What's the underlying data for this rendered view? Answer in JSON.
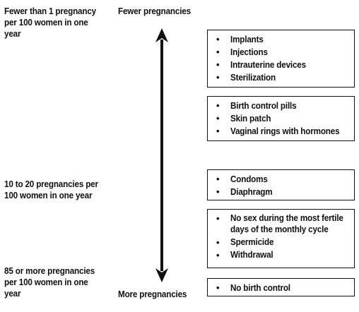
{
  "labels": {
    "top": "Fewer than 1 pregnancy\nper 100 women in one\nyear",
    "middle": "10 to 20 pregnancies per\n100 women in one year",
    "bottom": "85 or more pregnancies\nper 100 women in one\nyear"
  },
  "arrow": {
    "top_label": "Fewer pregnancies",
    "bottom_label": "More pregnancies"
  },
  "groups": [
    {
      "items": [
        "Implants",
        "Injections",
        "Intrauterine devices",
        "Sterilization"
      ]
    },
    {
      "items": [
        "Birth control pills",
        "Skin patch",
        "Vaginal rings with hormones"
      ]
    },
    {
      "items": [
        "Condoms",
        "Diaphragm"
      ]
    },
    {
      "items": [
        "No sex during the most fertile days of the monthly cycle",
        "Spermicide",
        "Withdrawal"
      ]
    },
    {
      "items": [
        "No birth control"
      ]
    }
  ],
  "bullet": "•"
}
